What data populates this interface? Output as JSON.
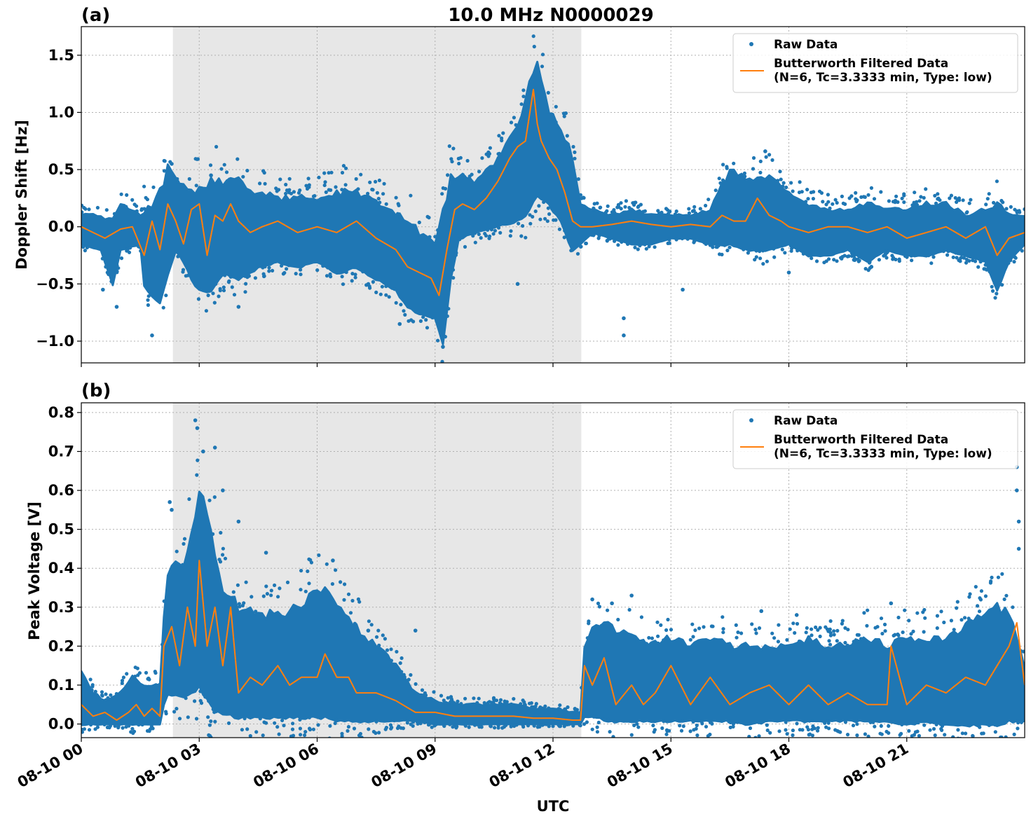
{
  "figure": {
    "title": "10.0 MHz N0000029",
    "xlabel": "UTC",
    "x_ticks": [
      "08-10 00",
      "08-10 03",
      "08-10 06",
      "08-10 09",
      "08-10 12",
      "08-10 15",
      "08-10 18",
      "08-10 21"
    ],
    "shaded_interval_hours": [
      2.33,
      12.72
    ],
    "colors": {
      "raw": "#1f77b4",
      "filtered": "#ff7f0e",
      "shade": "#e7e7e7",
      "grid": "#b0b0b0"
    }
  },
  "chart_data": [
    {
      "type": "scatter",
      "panel_label": "(a)",
      "ylabel": "Doppler Shift [Hz]",
      "xlim_hours": [
        0,
        24
      ],
      "ylim": [
        -1.19,
        1.75
      ],
      "y_ticks": [
        {
          "value": 1.5,
          "label": "1.5"
        },
        {
          "value": 1.0,
          "label": "1.0"
        },
        {
          "value": 0.5,
          "label": "0.5"
        },
        {
          "value": 0.0,
          "label": "0.0"
        },
        {
          "value": -0.5,
          "label": "−0.5"
        },
        {
          "value": -1.0,
          "label": "−1.0"
        }
      ],
      "grid": true,
      "legend": {
        "position": "upper right",
        "raw_label": "Raw Data",
        "filtered_label_line1": "Butterworth Filtered Data",
        "filtered_label_line2": "(N=6, Tc=3.3333 min, Type: low)"
      },
      "series": [
        {
          "name": "Butterworth Filtered Data",
          "kind": "line",
          "x_hours": [
            0,
            0.3,
            0.6,
            1.0,
            1.3,
            1.6,
            1.8,
            2.0,
            2.2,
            2.4,
            2.6,
            2.8,
            3.0,
            3.2,
            3.4,
            3.6,
            3.8,
            4.0,
            4.3,
            4.6,
            5.0,
            5.5,
            6.0,
            6.5,
            7.0,
            7.5,
            8.0,
            8.3,
            8.6,
            8.9,
            9.1,
            9.3,
            9.5,
            9.7,
            10.0,
            10.3,
            10.6,
            10.9,
            11.1,
            11.3,
            11.5,
            11.6,
            11.7,
            11.9,
            12.1,
            12.3,
            12.5,
            12.7,
            13.0,
            13.5,
            14.0,
            14.5,
            15.0,
            15.5,
            16.0,
            16.3,
            16.6,
            16.9,
            17.2,
            17.5,
            17.8,
            18.0,
            18.5,
            19.0,
            19.5,
            20.0,
            20.5,
            21.0,
            21.5,
            22.0,
            22.5,
            23.0,
            23.3,
            23.6,
            24.0
          ],
          "y": [
            0.0,
            -0.05,
            -0.1,
            -0.02,
            0.0,
            -0.25,
            0.05,
            -0.2,
            0.2,
            0.05,
            -0.15,
            0.15,
            0.2,
            -0.25,
            0.1,
            0.05,
            0.2,
            0.05,
            -0.05,
            0.0,
            0.05,
            -0.05,
            0.0,
            -0.05,
            0.05,
            -0.1,
            -0.2,
            -0.35,
            -0.4,
            -0.45,
            -0.6,
            -0.2,
            0.15,
            0.2,
            0.15,
            0.25,
            0.4,
            0.6,
            0.7,
            0.75,
            1.2,
            0.9,
            0.75,
            0.6,
            0.5,
            0.3,
            0.05,
            0.0,
            0.0,
            0.02,
            0.05,
            0.02,
            0.0,
            0.02,
            0.0,
            0.1,
            0.05,
            0.05,
            0.25,
            0.1,
            0.05,
            0.0,
            -0.05,
            0.0,
            0.0,
            -0.05,
            0.0,
            -0.1,
            -0.05,
            0.0,
            -0.1,
            0.0,
            -0.25,
            -0.1,
            -0.05
          ]
        },
        {
          "name": "Raw Data",
          "kind": "band",
          "x_hours": [
            0,
            0.5,
            0.8,
            1.0,
            1.5,
            1.6,
            1.8,
            2.0,
            2.2,
            2.4,
            2.6,
            2.8,
            3.0,
            3.3,
            3.6,
            4.0,
            4.5,
            5.0,
            5.5,
            6.0,
            6.5,
            7.0,
            7.5,
            8.0,
            8.3,
            8.6,
            9.0,
            9.2,
            9.4,
            9.6,
            10.0,
            10.5,
            11.0,
            11.3,
            11.6,
            11.9,
            12.2,
            12.5,
            12.7,
            13.0,
            13.5,
            14.0,
            14.5,
            15.0,
            15.5,
            16.0,
            16.5,
            17.0,
            17.5,
            18.0,
            18.5,
            19.0,
            19.5,
            20.0,
            20.5,
            21.0,
            21.5,
            22.0,
            22.5,
            23.0,
            23.3,
            23.6,
            24.0
          ],
          "low": [
            -0.15,
            -0.2,
            -0.5,
            -0.2,
            -0.15,
            -0.5,
            -0.6,
            -0.65,
            -0.4,
            -0.2,
            -0.3,
            -0.45,
            -0.55,
            -0.55,
            -0.4,
            -0.45,
            -0.35,
            -0.3,
            -0.35,
            -0.3,
            -0.4,
            -0.35,
            -0.45,
            -0.55,
            -0.7,
            -0.75,
            -0.8,
            -1.0,
            -0.45,
            -0.1,
            -0.05,
            0.0,
            0.05,
            0.1,
            0.3,
            0.2,
            0.05,
            -0.2,
            -0.15,
            -0.05,
            -0.1,
            -0.15,
            -0.15,
            -0.1,
            -0.1,
            -0.15,
            -0.15,
            -0.2,
            -0.2,
            -0.15,
            -0.25,
            -0.25,
            -0.2,
            -0.3,
            -0.2,
            -0.25,
            -0.25,
            -0.2,
            -0.25,
            -0.3,
            -0.55,
            -0.3,
            -0.15
          ],
          "high": [
            0.1,
            0.1,
            0.05,
            0.2,
            0.1,
            0.15,
            0.15,
            0.3,
            0.5,
            0.4,
            0.35,
            0.3,
            0.35,
            0.4,
            0.4,
            0.4,
            0.3,
            0.25,
            0.25,
            0.25,
            0.3,
            0.3,
            0.2,
            0.1,
            0.05,
            -0.05,
            -0.15,
            0.1,
            0.45,
            0.45,
            0.4,
            0.55,
            0.8,
            1.1,
            1.5,
            1.0,
            0.85,
            0.6,
            0.2,
            0.15,
            0.1,
            0.15,
            0.1,
            0.1,
            0.1,
            0.15,
            0.5,
            0.4,
            0.45,
            0.3,
            0.2,
            0.15,
            0.15,
            0.2,
            0.15,
            0.15,
            0.2,
            0.2,
            0.1,
            0.15,
            0.2,
            0.1,
            0.1
          ],
          "outliers": [
            [
              0.55,
              -0.55
            ],
            [
              0.9,
              -0.7
            ],
            [
              1.8,
              -0.95
            ],
            [
              2.3,
              0.55
            ],
            [
              3.3,
              0.45
            ],
            [
              4.0,
              -0.7
            ],
            [
              8.1,
              -0.85
            ],
            [
              9.2,
              -1.05
            ],
            [
              11.1,
              -0.5
            ],
            [
              13.8,
              -0.8
            ],
            [
              13.8,
              -0.95
            ],
            [
              15.3,
              -0.55
            ],
            [
              17.4,
              0.66
            ],
            [
              18.0,
              -0.4
            ],
            [
              20.1,
              -0.35
            ]
          ]
        }
      ]
    },
    {
      "type": "scatter",
      "panel_label": "(b)",
      "ylabel": "Peak Voltage [V]",
      "xlim_hours": [
        0,
        24
      ],
      "ylim": [
        -0.035,
        0.825
      ],
      "y_ticks": [
        {
          "value": 0.8,
          "label": "0.8"
        },
        {
          "value": 0.7,
          "label": "0.7"
        },
        {
          "value": 0.6,
          "label": "0.6"
        },
        {
          "value": 0.5,
          "label": "0.5"
        },
        {
          "value": 0.4,
          "label": "0.4"
        },
        {
          "value": 0.3,
          "label": "0.3"
        },
        {
          "value": 0.2,
          "label": "0.2"
        },
        {
          "value": 0.1,
          "label": "0.1"
        },
        {
          "value": 0.0,
          "label": "0.0"
        }
      ],
      "grid": true,
      "legend": {
        "position": "upper right",
        "raw_label": "Raw Data",
        "filtered_label_line1": "Butterworth Filtered Data",
        "filtered_label_line2": "(N=6, Tc=3.3333 min, Type: low)"
      },
      "series": [
        {
          "name": "Butterworth Filtered Data",
          "kind": "line",
          "x_hours": [
            0,
            0.3,
            0.6,
            0.9,
            1.2,
            1.4,
            1.6,
            1.8,
            2.0,
            2.1,
            2.3,
            2.5,
            2.7,
            2.9,
            3.0,
            3.2,
            3.4,
            3.6,
            3.8,
            4.0,
            4.3,
            4.6,
            5.0,
            5.3,
            5.6,
            6.0,
            6.2,
            6.5,
            6.8,
            7.0,
            7.5,
            8.0,
            8.5,
            9.0,
            9.5,
            10.0,
            10.5,
            11.0,
            11.5,
            12.0,
            12.5,
            12.7,
            12.8,
            13.0,
            13.3,
            13.6,
            14.0,
            14.3,
            14.6,
            15.0,
            15.5,
            16.0,
            16.5,
            17.0,
            17.5,
            18.0,
            18.5,
            19.0,
            19.5,
            20.0,
            20.5,
            20.6,
            21.0,
            21.5,
            22.0,
            22.5,
            23.0,
            23.3,
            23.6,
            23.8,
            24.0
          ],
          "y": [
            0.05,
            0.02,
            0.03,
            0.01,
            0.03,
            0.05,
            0.02,
            0.04,
            0.02,
            0.2,
            0.25,
            0.15,
            0.3,
            0.2,
            0.42,
            0.2,
            0.3,
            0.15,
            0.3,
            0.08,
            0.12,
            0.1,
            0.15,
            0.1,
            0.12,
            0.12,
            0.18,
            0.12,
            0.12,
            0.08,
            0.08,
            0.06,
            0.03,
            0.03,
            0.02,
            0.02,
            0.02,
            0.02,
            0.015,
            0.015,
            0.01,
            0.01,
            0.15,
            0.1,
            0.17,
            0.05,
            0.1,
            0.05,
            0.08,
            0.15,
            0.05,
            0.12,
            0.05,
            0.08,
            0.1,
            0.05,
            0.1,
            0.05,
            0.08,
            0.05,
            0.05,
            0.2,
            0.05,
            0.1,
            0.08,
            0.12,
            0.1,
            0.15,
            0.2,
            0.26,
            0.1
          ]
        },
        {
          "name": "Raw Data",
          "kind": "band",
          "x_hours": [
            0,
            0.3,
            0.6,
            1.0,
            1.3,
            1.6,
            2.0,
            2.15,
            2.3,
            2.6,
            3.0,
            3.3,
            3.6,
            4.0,
            4.5,
            5.0,
            5.5,
            6.0,
            6.3,
            6.6,
            7.0,
            7.5,
            8.0,
            8.5,
            9.0,
            9.5,
            10.0,
            10.5,
            11.0,
            11.5,
            12.0,
            12.5,
            12.7,
            12.8,
            13.0,
            13.5,
            14.0,
            14.5,
            15.0,
            15.5,
            16.0,
            16.5,
            17.0,
            17.5,
            18.0,
            18.5,
            19.0,
            19.5,
            20.0,
            20.5,
            21.0,
            21.5,
            22.0,
            22.5,
            23.0,
            23.3,
            23.6,
            24.0
          ],
          "low": [
            0.0,
            0.0,
            0.0,
            0.0,
            0.0,
            0.0,
            0.0,
            0.08,
            0.08,
            0.07,
            0.1,
            0.05,
            0.03,
            0.02,
            0.02,
            0.02,
            0.02,
            0.02,
            0.02,
            0.01,
            0.01,
            0.01,
            0.01,
            0.01,
            0.0,
            0.0,
            0.0,
            0.0,
            0.0,
            0.0,
            0.0,
            0.0,
            0.0,
            0.02,
            0.02,
            0.01,
            0.01,
            0.01,
            0.01,
            0.01,
            0.01,
            0.01,
            0.0,
            0.01,
            0.01,
            0.01,
            0.01,
            0.01,
            0.01,
            0.01,
            0.0,
            0.01,
            0.0,
            0.0,
            0.0,
            0.0,
            0.01,
            0.01
          ],
          "high": [
            0.13,
            0.08,
            0.06,
            0.08,
            0.12,
            0.1,
            0.1,
            0.35,
            0.42,
            0.4,
            0.6,
            0.5,
            0.35,
            0.3,
            0.28,
            0.28,
            0.3,
            0.35,
            0.35,
            0.3,
            0.25,
            0.2,
            0.15,
            0.08,
            0.06,
            0.05,
            0.05,
            0.05,
            0.05,
            0.04,
            0.04,
            0.03,
            0.03,
            0.2,
            0.25,
            0.25,
            0.22,
            0.2,
            0.22,
            0.2,
            0.22,
            0.2,
            0.2,
            0.2,
            0.2,
            0.22,
            0.2,
            0.2,
            0.22,
            0.2,
            0.22,
            0.22,
            0.22,
            0.25,
            0.28,
            0.3,
            0.28,
            0.15
          ],
          "outliers": [
            [
              2.25,
              0.57
            ],
            [
              2.3,
              0.55
            ],
            [
              2.9,
              0.78
            ],
            [
              2.95,
              0.76
            ],
            [
              3.1,
              0.7
            ],
            [
              3.4,
              0.71
            ],
            [
              3.6,
              0.6
            ],
            [
              4.0,
              0.52
            ],
            [
              4.7,
              0.44
            ],
            [
              6.4,
              0.42
            ],
            [
              7.3,
              0.24
            ],
            [
              8.5,
              0.24
            ],
            [
              13.0,
              0.32
            ],
            [
              13.5,
              0.31
            ],
            [
              14.0,
              0.33
            ],
            [
              17.3,
              0.29
            ],
            [
              18.2,
              0.28
            ],
            [
              20.6,
              0.31
            ],
            [
              23.8,
              0.66
            ],
            [
              23.8,
              0.6
            ],
            [
              23.85,
              0.52
            ],
            [
              23.85,
              0.45
            ]
          ]
        }
      ]
    }
  ]
}
